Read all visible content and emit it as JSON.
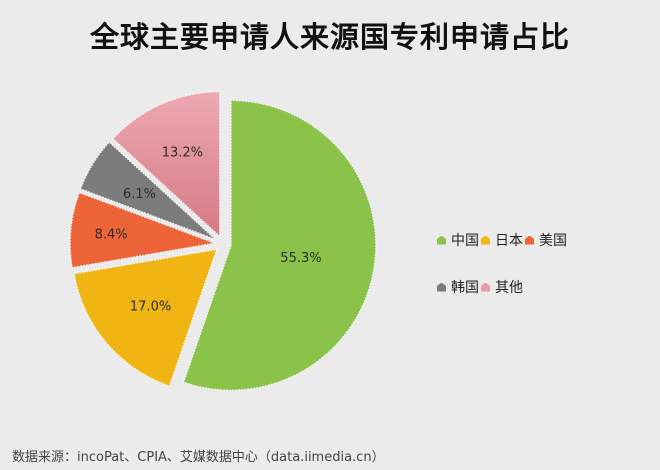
{
  "title": "全球主要申请人来源国专利申请占比",
  "chart_data": {
    "type": "pie",
    "title": "全球主要申请人来源国专利申请占比",
    "exploded": true,
    "start_angle_deg": 0,
    "direction": "clockwise",
    "categories": [
      "中国",
      "日本",
      "美国",
      "韩国",
      "其他"
    ],
    "values": [
      55.3,
      17.0,
      8.4,
      6.1,
      13.2
    ],
    "labels": [
      "55.3%",
      "17.0%",
      "8.4%",
      "6.1%",
      "13.2%"
    ],
    "colors": [
      "#8bc34a",
      "#f0b512",
      "#ec6437",
      "#7c7c7c",
      "#e99aa4"
    ],
    "legend_position": "right"
  },
  "legend": {
    "rows": [
      [
        {
          "label": "中国",
          "color": "#8bc34a"
        },
        {
          "label": "日本",
          "color": "#f0b512"
        },
        {
          "label": "美国",
          "color": "#ec6437"
        }
      ],
      [
        {
          "label": "韩国",
          "color": "#7c7c7c"
        },
        {
          "label": "其他",
          "color": "#e99aa4"
        }
      ]
    ]
  },
  "source": "数据来源：incoPat、CPIA、艾媒数据中心（data.iimedia.cn）"
}
